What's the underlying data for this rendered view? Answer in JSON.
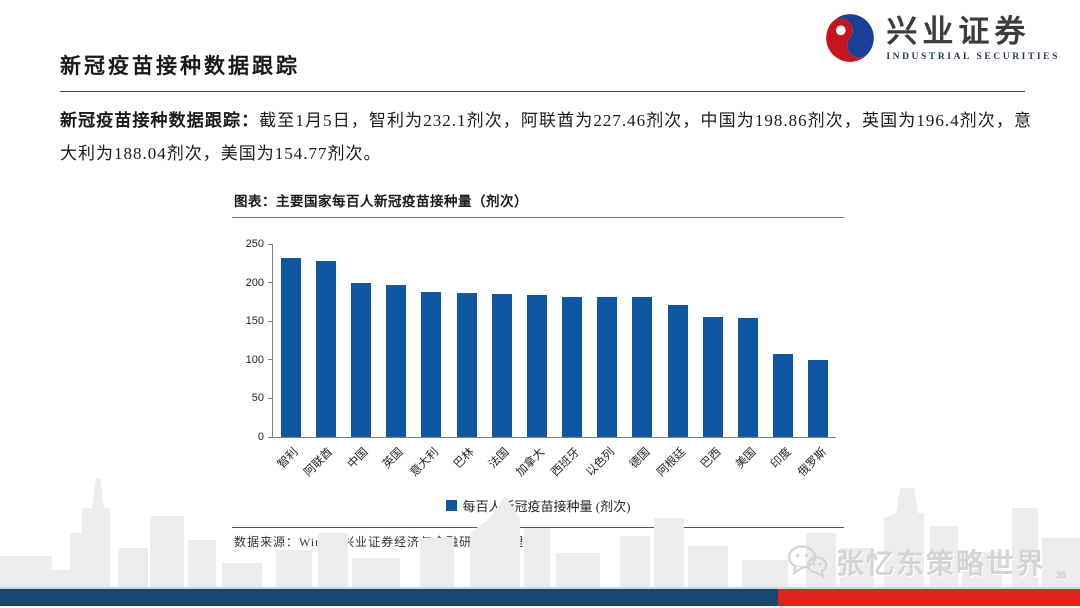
{
  "header": {
    "logo_zh": "兴业证券",
    "logo_en": "INDUSTRIAL SECURITIES",
    "page_title": "新冠疫苗接种数据跟踪"
  },
  "paragraph": {
    "lead": "新冠疫苗接种数据跟踪：",
    "body": "截至1月5日，智利为232.1剂次，阿联酋为227.46剂次，中国为198.86剂次，英国为196.4剂次，意大利为188.04剂次，美国为154.77剂次。"
  },
  "chart_data": {
    "type": "bar",
    "title": "图表：主要国家每百人新冠疫苗接种量（剂次）",
    "categories": [
      "智利",
      "阿联酋",
      "中国",
      "英国",
      "意大利",
      "巴林",
      "法国",
      "加拿大",
      "西班牙",
      "以色列",
      "德国",
      "阿根廷",
      "巴西",
      "美国",
      "印度",
      "俄罗斯"
    ],
    "values": [
      232.1,
      227.46,
      198.86,
      196.4,
      188.04,
      187,
      185.5,
      184.5,
      181.5,
      181,
      181,
      170.5,
      156,
      154.77,
      107,
      100
    ],
    "legend": "每百人新冠疫苗接种量 (剂次)",
    "xlabel": "",
    "ylabel": "",
    "ylim": [
      0,
      250
    ],
    "yticks": [
      0,
      50,
      100,
      150,
      200,
      250
    ],
    "grid": false,
    "legend_position": "bottom",
    "bar_color": "#0d57a3"
  },
  "chart_source": "数据来源：Wind，兴业证券经济与金融研究院整理",
  "footer": {
    "watermark": "张忆东策略世界",
    "page_number": "35"
  },
  "colors": {
    "accent_blue": "#0d57a3",
    "footer_navy": "#17466e",
    "footer_red": "#df241a",
    "logo_red": "#c4161c",
    "logo_blue": "#19419a"
  }
}
